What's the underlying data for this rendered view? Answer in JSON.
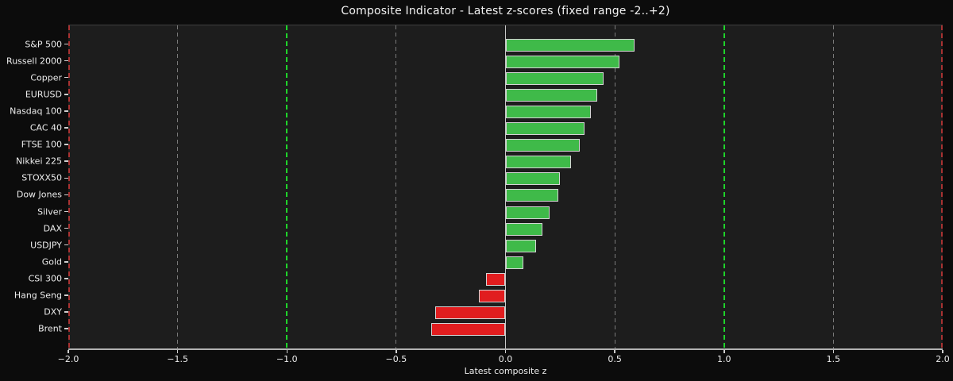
{
  "chart_data": {
    "type": "bar",
    "orientation": "horizontal",
    "title": "Composite Indicator - Latest z-scores (fixed range -2..+2)",
    "xlabel": "Latest composite z",
    "xlim": [
      -2.0,
      2.0
    ],
    "categories": [
      "S&P 500",
      "Russell 2000",
      "Copper",
      "EURUSD",
      "Nasdaq 100",
      "CAC 40",
      "FTSE 100",
      "Nikkei 225",
      "STOXX50",
      "Dow Jones",
      "Silver",
      "DAX",
      "USDJPY",
      "Gold",
      "CSI 300",
      "Hang Seng",
      "DXY",
      "Brent"
    ],
    "values": [
      0.59,
      0.52,
      0.45,
      0.42,
      0.39,
      0.36,
      0.34,
      0.3,
      0.25,
      0.24,
      0.2,
      0.17,
      0.14,
      0.08,
      -0.09,
      -0.12,
      -0.32,
      -0.34
    ],
    "x_ticks": [
      -2.0,
      -1.5,
      -1.0,
      -0.5,
      0.0,
      0.5,
      1.0,
      1.5,
      2.0
    ],
    "x_tick_labels": [
      "−2.0",
      "−1.5",
      "−1.0",
      "−0.5",
      "0.0",
      "0.5",
      "1.0",
      "1.5",
      "2.0"
    ],
    "gridlines_dashed_gray": [
      -1.5,
      -0.5,
      0.5,
      1.5
    ],
    "reference_lines": [
      {
        "x": -2.0,
        "style": "dash-red"
      },
      {
        "x": 2.0,
        "style": "dash-red"
      },
      {
        "x": -1.0,
        "style": "dash-green"
      },
      {
        "x": 1.0,
        "style": "dash-green"
      },
      {
        "x": 0.0,
        "style": "solid-zero"
      }
    ],
    "colors": {
      "positive_bar": "#3fba49",
      "negative_bar": "#e11d1f",
      "bar_edge": "#d4d4d4",
      "figure_background": "#0c0c0c",
      "axes_background": "#1d1d1d",
      "grid_gray": "#7a7a7a",
      "threshold_green": "#1fd42b",
      "extreme_red": "#a83232",
      "zero_line": "#c8c8c8",
      "text": "#f2f2f2"
    },
    "legend": null,
    "grid": "vertical-dashed"
  }
}
